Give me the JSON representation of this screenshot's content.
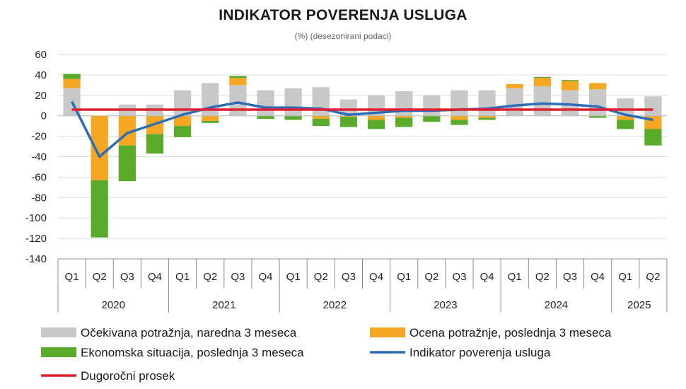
{
  "chart_data": {
    "type": "bar",
    "title": "INDIKATOR POVERENJA USLUGA",
    "subtitle": "(%) (desezonirani podaci)",
    "ylim": [
      -140,
      60
    ],
    "yticks": [
      60,
      40,
      20,
      0,
      -20,
      -40,
      -60,
      -80,
      -100,
      -120,
      -140
    ],
    "categories": [
      "Q1",
      "Q2",
      "Q3",
      "Q4",
      "Q1",
      "Q2",
      "Q3",
      "Q4",
      "Q1",
      "Q2",
      "Q3",
      "Q4",
      "Q1",
      "Q2",
      "Q3",
      "Q4",
      "Q1",
      "Q2",
      "Q3",
      "Q4",
      "Q1",
      "Q2"
    ],
    "years": [
      {
        "label": "2020",
        "count": 4
      },
      {
        "label": "2021",
        "count": 4
      },
      {
        "label": "2022",
        "count": 4
      },
      {
        "label": "2023",
        "count": 4
      },
      {
        "label": "2024",
        "count": 4
      },
      {
        "label": "2025",
        "count": 2
      }
    ],
    "series": [
      {
        "name": "Očekivana potražnja, naredna 3 meseca",
        "kind": "bar",
        "color": "#c8c8c8",
        "values": [
          27,
          0,
          11,
          11,
          25,
          32,
          30,
          25,
          27,
          28,
          16,
          20,
          24,
          20,
          25,
          25,
          27,
          29,
          25,
          26,
          17,
          19
        ]
      },
      {
        "name": "Ocena potražnje, poslednja 3 meseca",
        "kind": "bar",
        "color": "#f5a623",
        "values": [
          9,
          -63,
          -29,
          -18,
          -10,
          -5,
          7,
          0,
          0,
          -3,
          -1,
          -4,
          -2,
          0,
          -4,
          -2,
          4,
          8,
          9,
          6,
          -4,
          -13
        ]
      },
      {
        "name": "Ekonomska situacija, poslednja 3 meseca",
        "kind": "bar",
        "color": "#5aaa2c",
        "values": [
          5,
          -56,
          -35,
          -19,
          -11,
          -2,
          2,
          -3,
          -4,
          -7,
          -10,
          -9,
          -9,
          -6,
          -5,
          -2,
          0,
          1,
          1,
          -2,
          -9,
          -16
        ]
      },
      {
        "name": "Indikator poverenja usluga",
        "kind": "line",
        "color": "#2e6db4",
        "values": [
          14,
          -40,
          -17,
          -8,
          1,
          8,
          13,
          8,
          8,
          7,
          1,
          3,
          5,
          5,
          6,
          7,
          10,
          12,
          11,
          9,
          1,
          -4
        ]
      },
      {
        "name": "Dugoročni prosek",
        "kind": "line",
        "color": "#e02030",
        "values": [
          6,
          6,
          6,
          6,
          6,
          6,
          6,
          6,
          6,
          6,
          6,
          6,
          6,
          6,
          6,
          6,
          6,
          6,
          6,
          6,
          6,
          6
        ]
      }
    ],
    "grid": true,
    "legend_position": "bottom"
  }
}
